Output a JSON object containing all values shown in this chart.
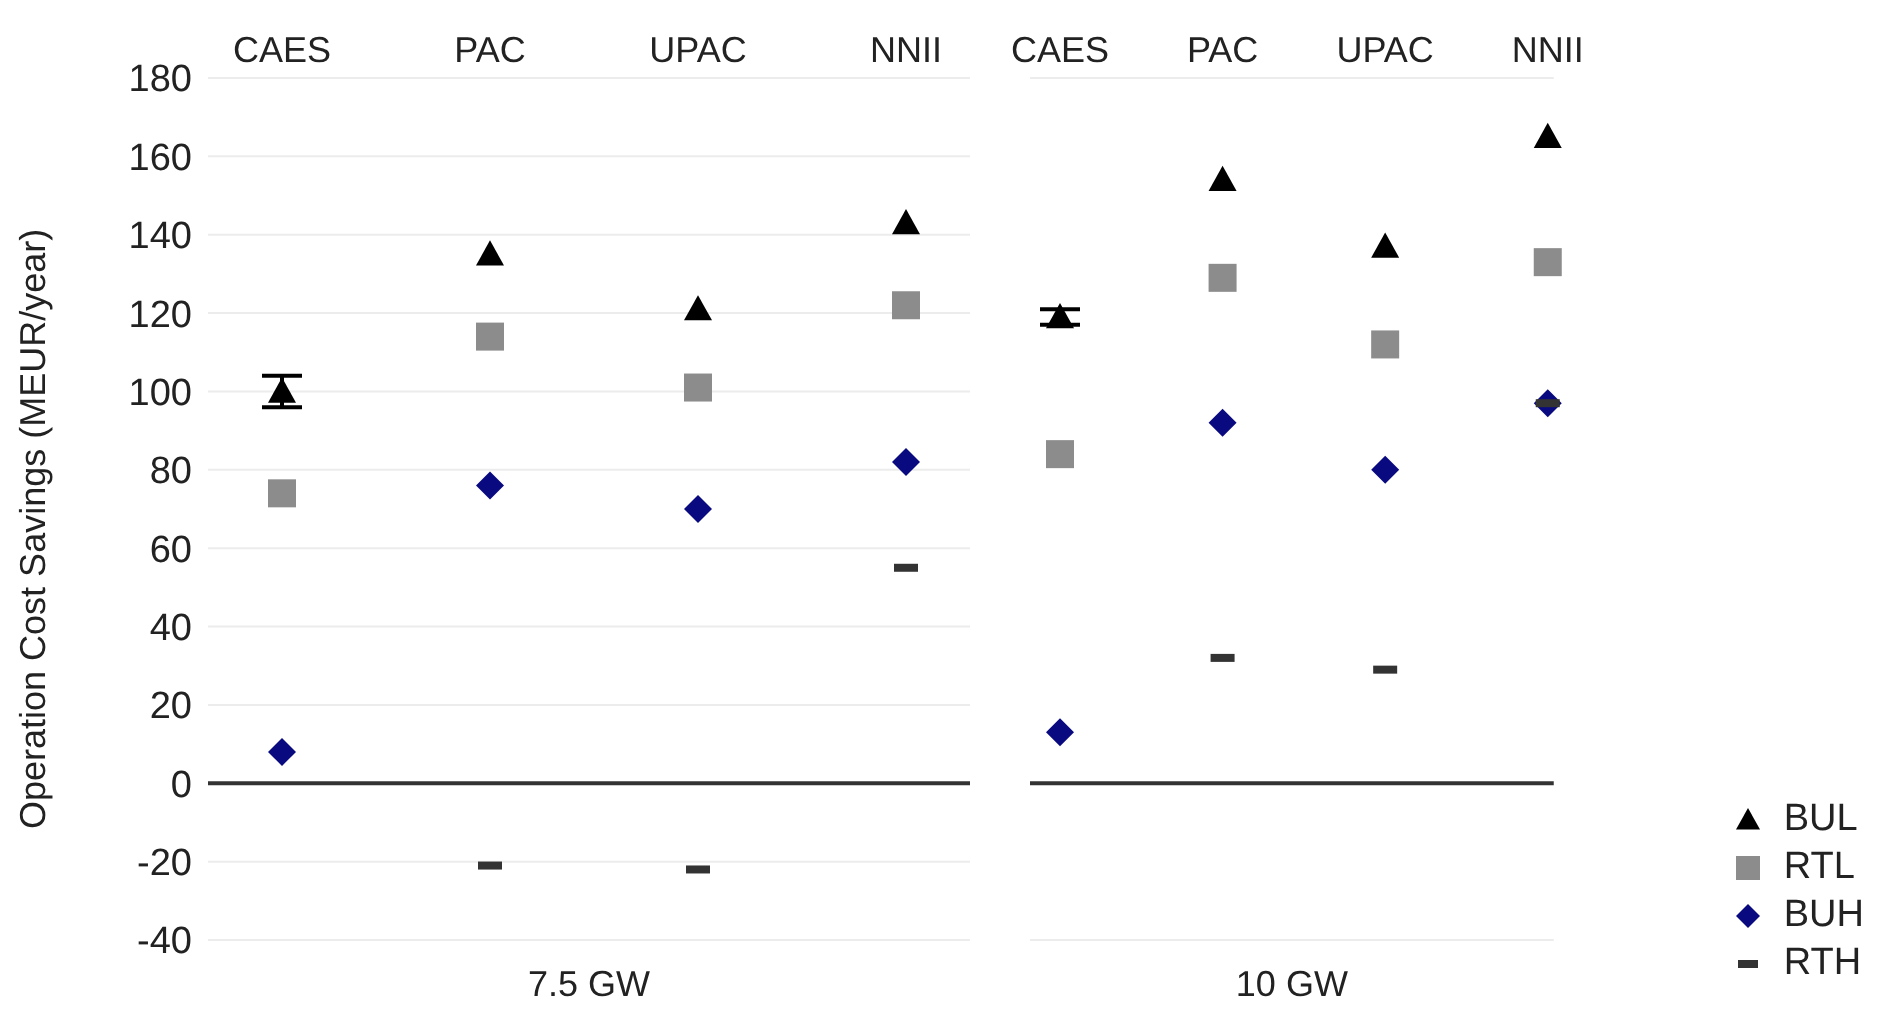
{
  "chart_data": [
    {
      "type": "scatter",
      "xlabel": "7.5 GW",
      "ylabel": "Operation Cost Savings (MEUR/year)",
      "categories": [
        "CAES",
        "PAC",
        "UPAC",
        "NNII"
      ],
      "ylim": [
        -40,
        180
      ],
      "yticks": [
        -40,
        -20,
        0,
        20,
        40,
        60,
        80,
        100,
        120,
        140,
        160,
        180
      ],
      "grid": "y",
      "ref_lines": [
        {
          "axis": "y",
          "value": 0,
          "color": "#333333",
          "line_style": "solid"
        }
      ],
      "series": [
        {
          "color": "#000000",
          "marker": "triangle",
          "values": [
            100,
            135,
            121,
            143
          ],
          "errors": [
            4,
            null,
            null,
            null
          ]
        },
        {
          "color": "#8c8c8c",
          "marker": "square",
          "values": [
            74,
            114,
            101,
            122
          ]
        },
        {
          "color": "#0a0a80",
          "marker": "diamond",
          "values": [
            8,
            76,
            70,
            82
          ]
        },
        {
          "color": "#333333",
          "values": [
            null,
            -21,
            -22,
            55
          ]
        }
      ]
    },
    {
      "type": "scatter",
      "xlabel": "10 GW",
      "categories": [
        "CAES",
        "PAC",
        "UPAC",
        "NNII"
      ],
      "ylim": [
        -40,
        180
      ],
      "tick_labels": "x",
      "grid": "y",
      "legend": "bottom right",
      "ref_lines": [
        {
          "axis": "y",
          "value": 0,
          "color": "#333333",
          "line_style": "solid"
        }
      ],
      "series": [
        {
          "name": "BUL",
          "color": "#000000",
          "marker": "triangle",
          "values": [
            119,
            154,
            137,
            165
          ],
          "errors": [
            2,
            null,
            null,
            null
          ]
        },
        {
          "name": "RTL",
          "color": "#8c8c8c",
          "marker": "square",
          "values": [
            84,
            129,
            112,
            133
          ]
        },
        {
          "name": "BUH",
          "color": "#0a0a80",
          "marker": "diamond",
          "values": [
            13,
            92,
            80,
            97
          ]
        },
        {
          "name": "RTH",
          "color": "#333333",
          "values": [
            null,
            32,
            29,
            97
          ]
        }
      ]
    }
  ]
}
